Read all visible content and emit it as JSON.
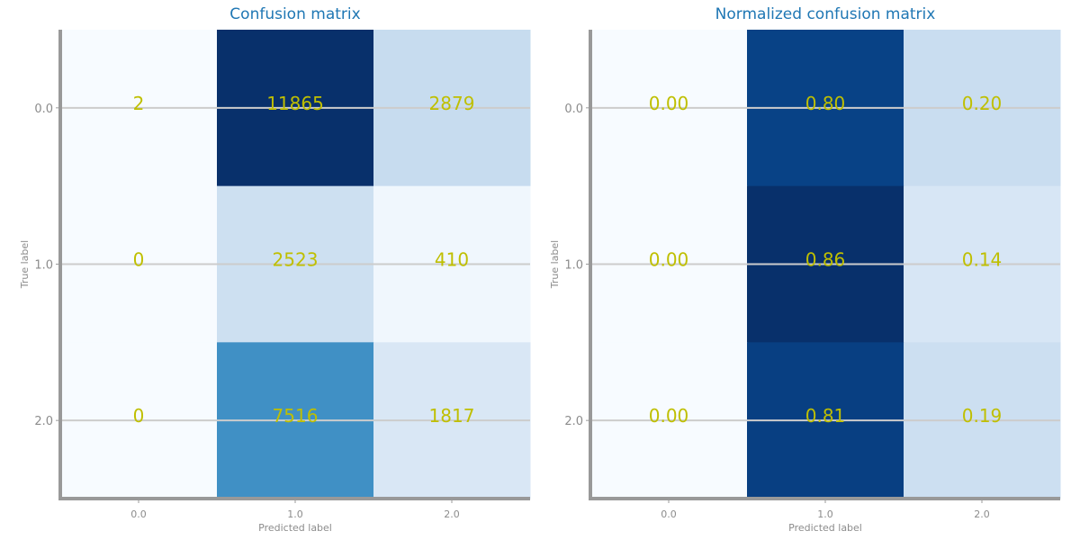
{
  "chart_data": [
    {
      "type": "heatmap",
      "title": "Confusion matrix",
      "xlabel": "Predicted label",
      "ylabel": "True label",
      "x_ticks": [
        "0.0",
        "1.0",
        "2.0"
      ],
      "y_ticks": [
        "0.0",
        "1.0",
        "2.0"
      ],
      "colormap": "Blues",
      "value_range": [
        0,
        11865
      ],
      "grid": true,
      "values": [
        [
          2,
          11865,
          2879
        ],
        [
          0,
          2523,
          410
        ],
        [
          0,
          7516,
          1817
        ]
      ],
      "cell_labels": [
        [
          "2",
          "11865",
          "2879"
        ],
        [
          "0",
          "2523",
          "410"
        ],
        [
          "0",
          "7516",
          "1817"
        ]
      ]
    },
    {
      "type": "heatmap",
      "title": "Normalized confusion matrix",
      "xlabel": "Predicted label",
      "ylabel": "True label",
      "x_ticks": [
        "0.0",
        "1.0",
        "2.0"
      ],
      "y_ticks": [
        "0.0",
        "1.0",
        "2.0"
      ],
      "colormap": "Blues",
      "value_range": [
        0,
        0.86
      ],
      "grid": true,
      "values": [
        [
          0.0,
          0.8,
          0.2
        ],
        [
          0.0,
          0.86,
          0.14
        ],
        [
          0.0,
          0.81,
          0.19
        ]
      ],
      "cell_labels": [
        [
          "0.00",
          "0.80",
          "0.20"
        ],
        [
          "0.00",
          "0.86",
          "0.14"
        ],
        [
          "0.00",
          "0.81",
          "0.19"
        ]
      ]
    }
  ],
  "colors": {
    "title": "#1f77b4",
    "cell_text": "#bfbf00",
    "axis_spine": "#999999",
    "grid_line": "#cccccc",
    "tick_text": "#8c8c8c",
    "cmap_low": "#f7fbff",
    "cmap_high": "#08306b"
  }
}
